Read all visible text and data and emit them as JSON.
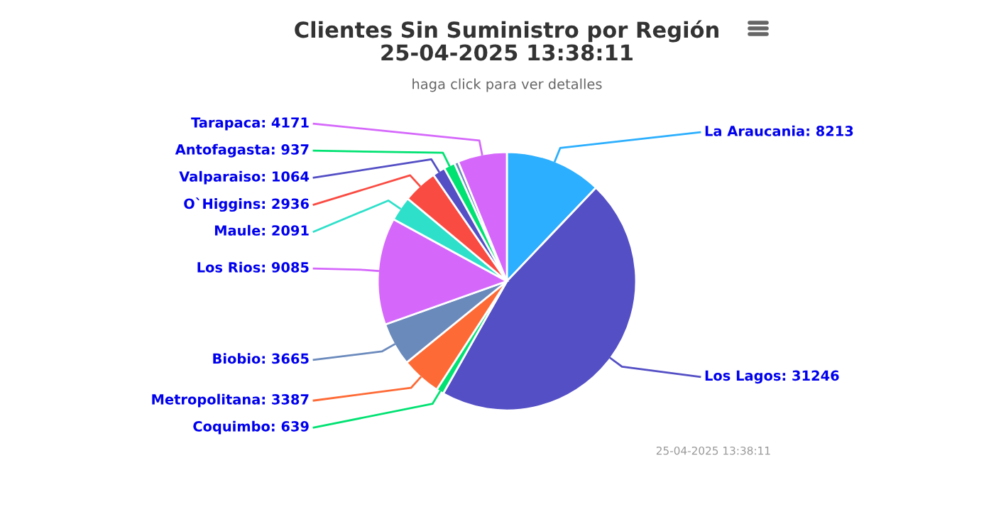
{
  "chart_data": {
    "type": "pie",
    "title": "Clientes Sin Suministro por Región\n25-04-2025 13:38:11",
    "subtitle": "haga click para ver detalles",
    "categories": [
      "La Araucania: 8213",
      "Los Lagos: 31246",
      "Coquimbo: 639",
      "Metropolitana: 3387",
      "Biobio: 3665",
      "Los Rios: 9085",
      "Maule: 2091",
      "O`Higgins: 2936",
      "Valparaiso: 1064",
      "Antofagasta: 937",
      null,
      "Tarapaca: 4171"
    ],
    "values": [
      8213,
      31246,
      639,
      3387,
      3665,
      9085,
      2091,
      2936,
      1064,
      937,
      350,
      4171
    ],
    "colors": [
      "#2caffe",
      "#544fc5",
      "#00e272",
      "#fe6a35",
      "#6b8abc",
      "#d568fb",
      "#2ee0ca",
      "#fa4b42",
      "#544fc5",
      "#00e272",
      "#6b8abc",
      "#d568fb"
    ],
    "annotations": [
      "25-04-2025 13:38:11"
    ]
  }
}
